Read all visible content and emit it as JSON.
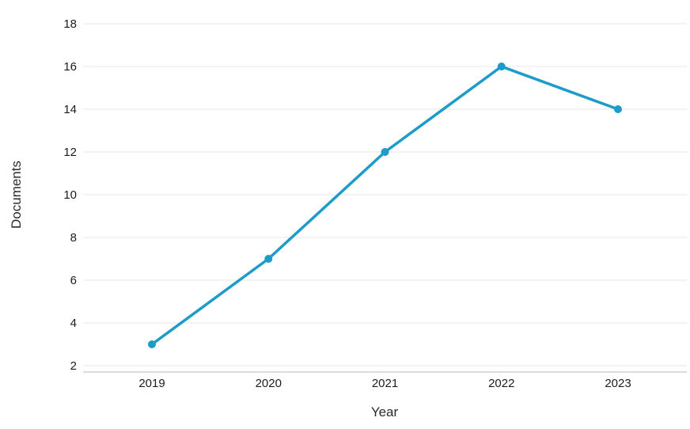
{
  "chart_data": {
    "type": "line",
    "x": [
      "2019",
      "2020",
      "2021",
      "2022",
      "2023"
    ],
    "series": [
      {
        "name": "Documents",
        "values": [
          3,
          7,
          12,
          16,
          14
        ]
      }
    ],
    "title": "",
    "xlabel": "Year",
    "ylabel": "Documents",
    "ylim": [
      2,
      18
    ],
    "ytick_step": 2,
    "grid": "horizontal",
    "legend": "none",
    "line_color": "#1d9bc9",
    "point_color": "#1d9bc9",
    "grid_color": "#e7e7e7",
    "axis_color": "#cfcfcf",
    "text_color": "#1c1c1c"
  }
}
